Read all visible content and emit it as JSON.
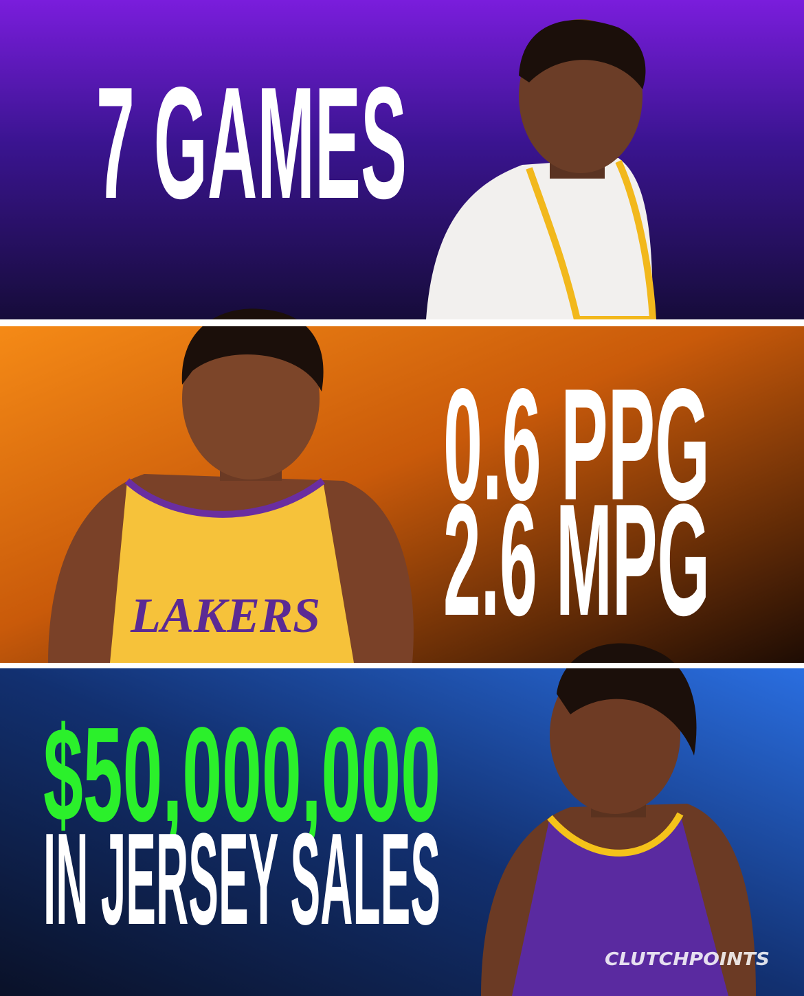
{
  "top": {
    "text": "7 GAMES"
  },
  "middle": {
    "lines": [
      "0.6 PPG",
      "2.6 MPG"
    ]
  },
  "bottom": {
    "amount": "$50,000,000",
    "caption": "IN JERSEY SALES"
  },
  "watermark": "CLUTCHPOINTS"
}
